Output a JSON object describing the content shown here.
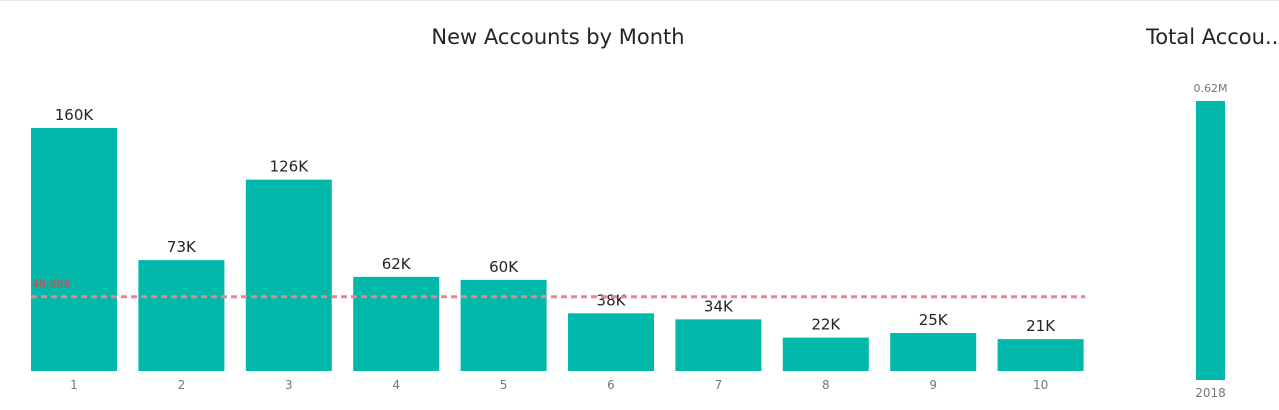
{
  "chart_data": [
    {
      "type": "bar",
      "title": "New Accounts by Month",
      "categories": [
        "1",
        "2",
        "3",
        "4",
        "5",
        "6",
        "7",
        "8",
        "9",
        "10"
      ],
      "values": [
        160000,
        73000,
        126000,
        62000,
        60000,
        38000,
        34000,
        22000,
        25000,
        21000
      ],
      "data_labels": [
        "160K",
        "73K",
        "126K",
        "62K",
        "60K",
        "38K",
        "34K",
        "22K",
        "25K",
        "21K"
      ],
      "reference_line": {
        "value": 48889,
        "label": "48,889",
        "color": "#e8858f",
        "style": "dashed"
      },
      "ylim": [
        0,
        160000
      ],
      "grid": false,
      "bar_color": "#01b8aa"
    },
    {
      "type": "bar",
      "title": "Total Accou...",
      "categories": [
        "2018"
      ],
      "values": [
        620000
      ],
      "data_labels": [
        "0.62M"
      ],
      "ylim": [
        0,
        620000
      ],
      "bar_color": "#01b8aa"
    }
  ]
}
